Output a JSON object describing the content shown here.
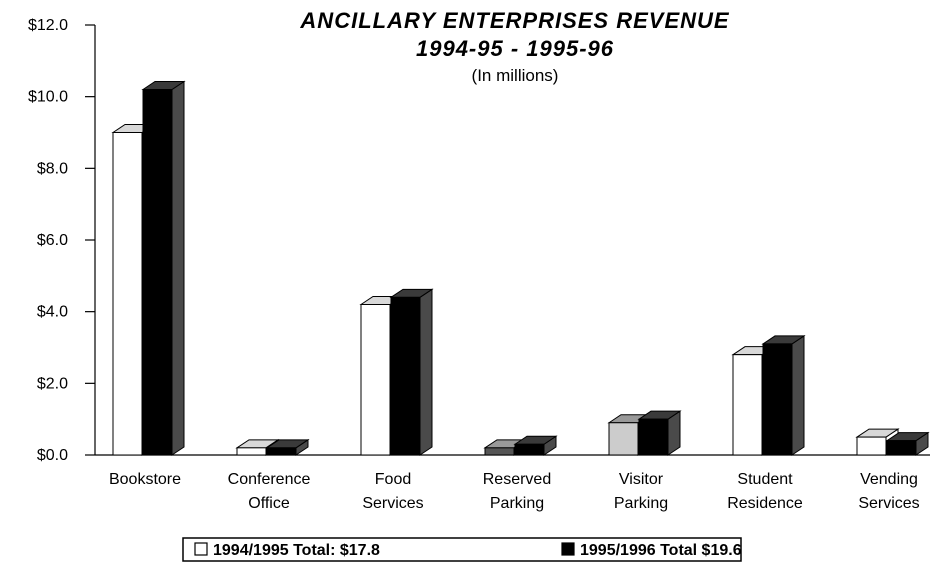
{
  "chart_data": {
    "type": "bar3d",
    "title": "ANCILLARY ENTERPRISES REVENUE",
    "subtitle": "1994-95 - 1995-96",
    "note": "(In millions)",
    "categories": [
      "Bookstore",
      "Conference Office",
      "Food Services",
      "Reserved Parking",
      "Visitor Parking",
      "Student Residence",
      "Vending Services"
    ],
    "series": [
      {
        "name": "1994/1995 Total: $17.8",
        "color": "#ffffff",
        "colors": [
          "#ffffff",
          "#ffffff",
          "#ffffff",
          "#555555",
          "#cccccc",
          "#ffffff",
          "#ffffff"
        ],
        "values": [
          9.0,
          0.2,
          4.2,
          0.2,
          0.9,
          2.8,
          0.5
        ]
      },
      {
        "name": "1995/1996 Total $19.6",
        "color": "#000000",
        "values": [
          10.2,
          0.2,
          4.4,
          0.3,
          1.0,
          3.1,
          0.4
        ]
      }
    ],
    "ylim": [
      0,
      12
    ],
    "yticks": [
      {
        "value": 0,
        "label": "$0.0"
      },
      {
        "value": 2,
        "label": "$2.0"
      },
      {
        "value": 4,
        "label": "$4.0"
      },
      {
        "value": 6,
        "label": "$6.0"
      },
      {
        "value": 8,
        "label": "$8.0"
      },
      {
        "value": 10,
        "label": "$10.0"
      },
      {
        "value": 12,
        "label": "$12.0"
      }
    ]
  }
}
